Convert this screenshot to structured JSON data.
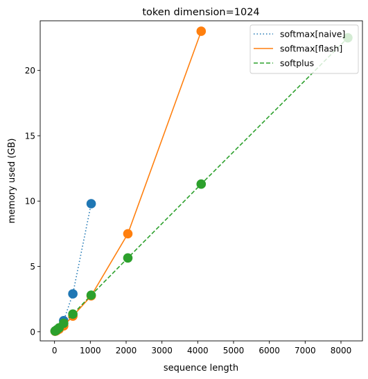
{
  "chart_data": {
    "type": "line",
    "title": "token dimension=1024",
    "xlabel": "sequence length",
    "ylabel": "memory used (GB)",
    "xlim": [
      -400,
      8600
    ],
    "ylim": [
      -0.7,
      23.8
    ],
    "xticks": [
      0,
      1000,
      2000,
      3000,
      4000,
      5000,
      6000,
      7000,
      8000
    ],
    "yticks": [
      0,
      5,
      10,
      15,
      20
    ],
    "grid": false,
    "legend_position": "top-right",
    "series": [
      {
        "name": "softmax[naive]",
        "color": "#1f77b4",
        "line_style": "dotted",
        "marker": "circle",
        "x": [
          16,
          32,
          64,
          128,
          256,
          512,
          1024
        ],
        "y": [
          0.05,
          0.06,
          0.1,
          0.25,
          0.85,
          2.9,
          9.8
        ]
      },
      {
        "name": "softmax[flash]",
        "color": "#ff7f0e",
        "line_style": "solid",
        "marker": "circle",
        "x": [
          16,
          32,
          64,
          128,
          256,
          512,
          1024,
          2048,
          4096
        ],
        "y": [
          0.04,
          0.06,
          0.1,
          0.2,
          0.45,
          1.2,
          2.75,
          7.5,
          23.0
        ]
      },
      {
        "name": "softplus",
        "color": "#2ca02c",
        "line_style": "dashed",
        "marker": "circle",
        "x": [
          16,
          32,
          64,
          128,
          256,
          512,
          1024,
          2048,
          4096,
          8192
        ],
        "y": [
          0.05,
          0.08,
          0.15,
          0.3,
          0.65,
          1.35,
          2.8,
          5.65,
          11.3,
          22.5
        ]
      }
    ]
  }
}
